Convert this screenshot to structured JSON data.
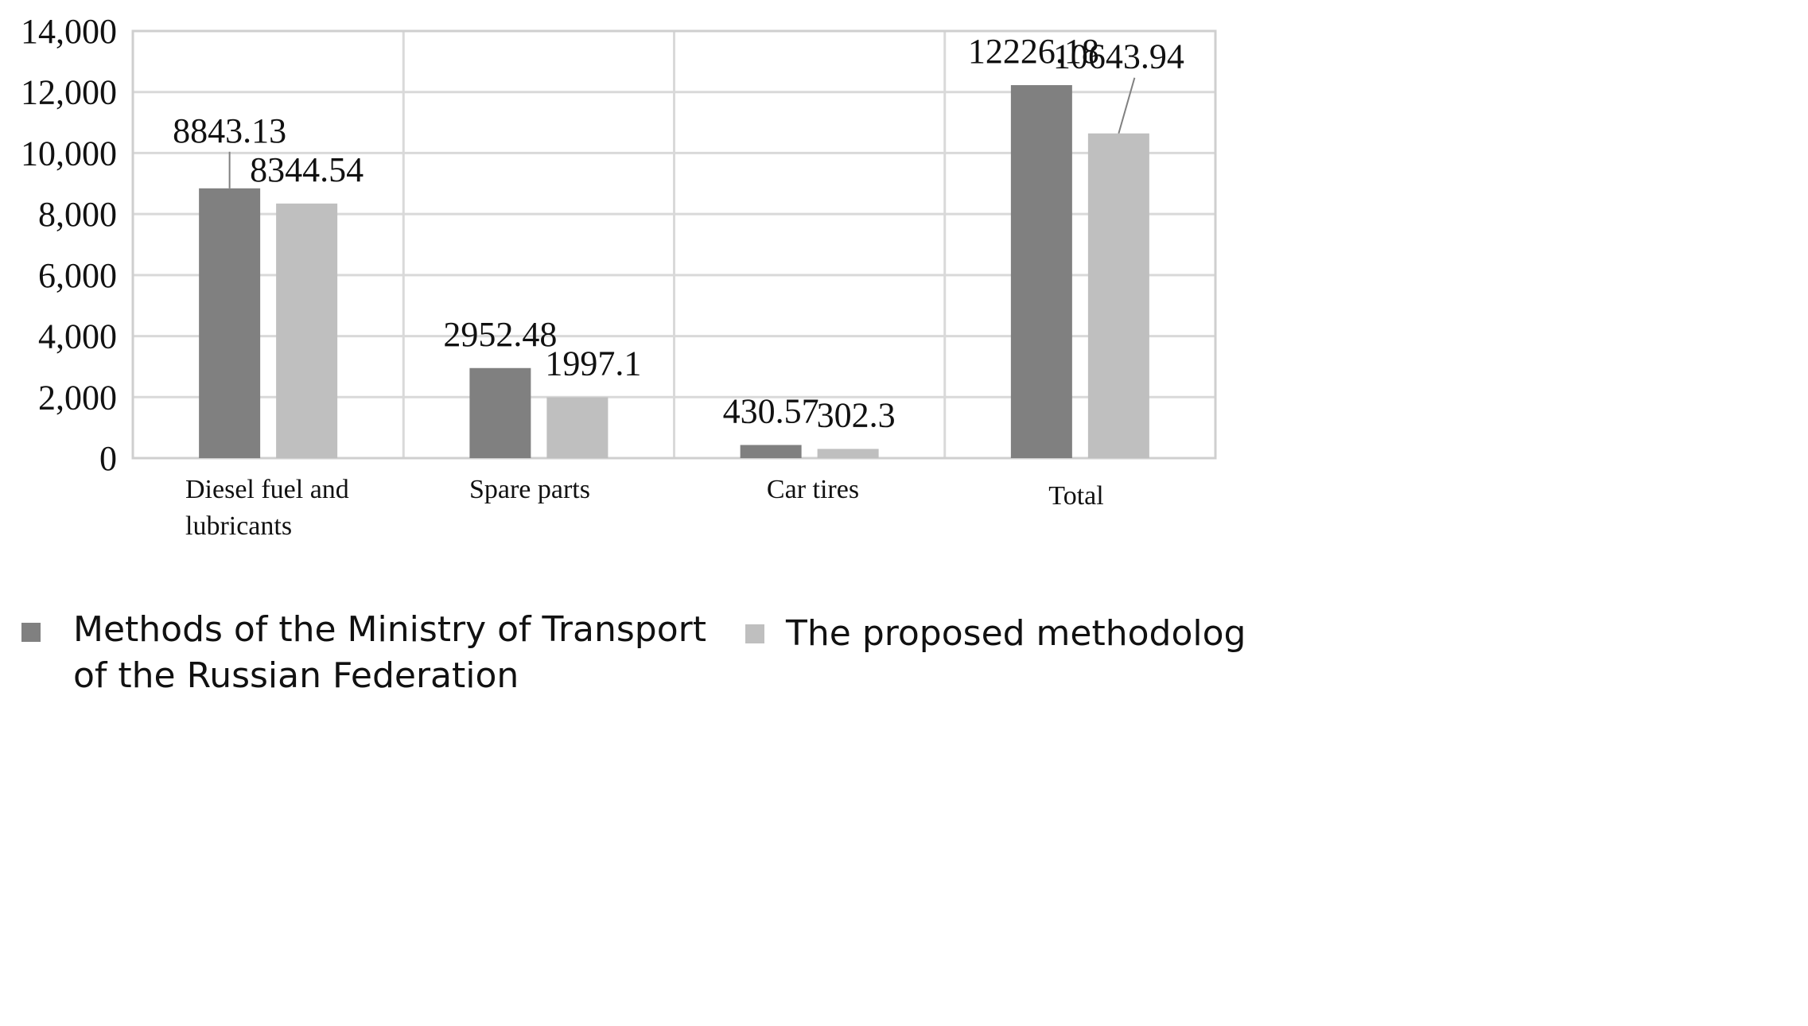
{
  "chart_data": {
    "type": "bar",
    "categories": [
      [
        "Diesel fuel and",
        "lubricants"
      ],
      [
        "Spare parts"
      ],
      [
        "Car tires"
      ],
      [
        "Total"
      ]
    ],
    "series": [
      {
        "name": "Methods of the Ministry of Transport of the Russian Federation",
        "legend_lines": [
          "Methods of the Ministry of Transport",
          "of the Russian Federation"
        ],
        "values": [
          8843.13,
          2952.48,
          430.57,
          12226.18
        ],
        "labels": [
          "8843.13",
          "2952.48",
          "430.57",
          "12226.18"
        ],
        "color": "#808080"
      },
      {
        "name": "The proposed methodology",
        "legend_lines": [
          "The proposed methodology"
        ],
        "values": [
          8344.54,
          1997.1,
          302.3,
          10643.94
        ],
        "labels": [
          "8344.54",
          "1997.1",
          "302.3",
          "10643.94"
        ],
        "color": "#bfbfbf"
      }
    ],
    "yticks": [
      "0",
      "2,000",
      "4,000",
      "6,000",
      "8,000",
      "10,000",
      "12,000",
      "14,000"
    ],
    "ylim": [
      0,
      14000
    ],
    "ystep": 2000,
    "title": "",
    "xlabel": "",
    "ylabel": "",
    "grid": true,
    "legend_position": "bottom"
  }
}
